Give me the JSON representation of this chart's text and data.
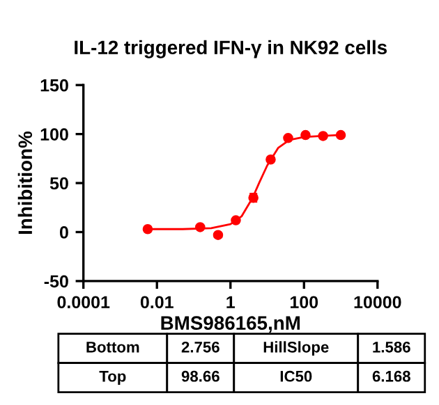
{
  "chart_data": {
    "type": "scatter",
    "title": "IL-12 triggered IFN-γ in NK92 cells",
    "xlabel": "BMS986165,nM",
    "ylabel": "Inhibition%",
    "log": "x",
    "xlim": [
      0.0001,
      10000
    ],
    "xticks": [
      {
        "value": 0.0001,
        "label": "0.0001"
      },
      {
        "value": 0.01,
        "label": "0.01"
      },
      {
        "value": 1,
        "label": "1"
      },
      {
        "value": 100,
        "label": "100"
      },
      {
        "value": 10000,
        "label": "10000"
      }
    ],
    "ylim": [
      -50,
      150
    ],
    "yticks": [
      -50,
      0,
      50,
      100,
      150
    ],
    "grid": false,
    "legend": false,
    "series": [
      {
        "color": "#ff0000",
        "marker": "circle",
        "x": [
          0.0056,
          0.15,
          0.46,
          1.4,
          4.2,
          12.4,
          37,
          110,
          330,
          1000
        ],
        "values": [
          3,
          5,
          -3,
          12,
          35,
          74,
          96,
          99,
          98,
          99
        ],
        "errors": [
          null,
          null,
          null,
          null,
          4,
          null,
          null,
          null,
          null,
          null
        ]
      },
      {
        "type": "line",
        "color": "#ff0000",
        "marker": "none",
        "x": [
          0.005,
          0.05,
          0.3,
          1,
          2,
          4,
          6.168,
          10,
          20,
          40,
          100,
          300,
          1000
        ],
        "values": [
          3,
          3,
          4,
          8,
          16,
          35,
          51,
          68,
          86,
          94,
          97,
          98,
          99
        ]
      }
    ],
    "annotations": [
      "Bottom",
      "2.756",
      "HillSlope",
      "1.586",
      "Top",
      "98.66",
      "IC50",
      "6.168"
    ]
  }
}
